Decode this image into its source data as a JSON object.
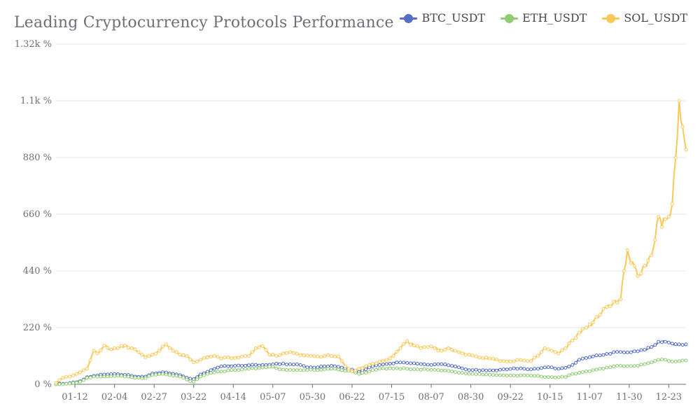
{
  "chart_data": {
    "type": "line",
    "title": "Leading Cryptocurrency Protocols Performance",
    "xlabel": "",
    "ylabel": "",
    "ylim": [
      0,
      1320
    ],
    "y_ticks": [
      "0 %",
      "220 %",
      "440 %",
      "660 %",
      "880 %",
      "1.1k %",
      "1.32k %"
    ],
    "y_tick_values": [
      0,
      220,
      440,
      660,
      880,
      1100,
      1320
    ],
    "x_tick_labels": [
      "01-12",
      "02-04",
      "02-27",
      "03-22",
      "04-14",
      "05-07",
      "05-30",
      "06-22",
      "07-15",
      "08-07",
      "08-30",
      "09-22",
      "10-15",
      "11-07",
      "11-30",
      "12-23"
    ],
    "x_tick_indices": [
      11,
      34,
      57,
      80,
      103,
      126,
      149,
      172,
      195,
      218,
      241,
      264,
      287,
      310,
      333,
      356
    ],
    "x_count": 366,
    "grid": true,
    "legend_position": "top-right",
    "series": [
      {
        "name": "BTC_USDT",
        "color": "#5470c6",
        "points": [
          [
            0,
            0
          ],
          [
            8,
            5
          ],
          [
            14,
            12
          ],
          [
            18,
            28
          ],
          [
            22,
            33
          ],
          [
            28,
            38
          ],
          [
            34,
            40
          ],
          [
            40,
            37
          ],
          [
            46,
            30
          ],
          [
            52,
            30
          ],
          [
            56,
            42
          ],
          [
            62,
            47
          ],
          [
            66,
            42
          ],
          [
            72,
            36
          ],
          [
            78,
            22
          ],
          [
            80,
            20
          ],
          [
            84,
            38
          ],
          [
            90,
            55
          ],
          [
            96,
            70
          ],
          [
            104,
            72
          ],
          [
            112,
            74
          ],
          [
            120,
            75
          ],
          [
            128,
            80
          ],
          [
            136,
            78
          ],
          [
            142,
            75
          ],
          [
            146,
            66
          ],
          [
            150,
            65
          ],
          [
            156,
            70
          ],
          [
            160,
            72
          ],
          [
            164,
            68
          ],
          [
            168,
            62
          ],
          [
            172,
            57
          ],
          [
            176,
            48
          ],
          [
            180,
            58
          ],
          [
            184,
            70
          ],
          [
            188,
            75
          ],
          [
            194,
            80
          ],
          [
            198,
            85
          ],
          [
            204,
            83
          ],
          [
            210,
            80
          ],
          [
            216,
            76
          ],
          [
            222,
            78
          ],
          [
            228,
            74
          ],
          [
            234,
            66
          ],
          [
            238,
            58
          ],
          [
            242,
            55
          ],
          [
            248,
            55
          ],
          [
            254,
            54
          ],
          [
            260,
            58
          ],
          [
            266,
            62
          ],
          [
            272,
            60
          ],
          [
            276,
            58
          ],
          [
            282,
            63
          ],
          [
            288,
            66
          ],
          [
            292,
            60
          ],
          [
            296,
            64
          ],
          [
            300,
            75
          ],
          [
            304,
            95
          ],
          [
            308,
            102
          ],
          [
            312,
            108
          ],
          [
            316,
            112
          ],
          [
            320,
            118
          ],
          [
            326,
            126
          ],
          [
            332,
            124
          ],
          [
            338,
            128
          ],
          [
            342,
            134
          ],
          [
            346,
            145
          ],
          [
            350,
            165
          ],
          [
            354,
            165
          ],
          [
            358,
            158
          ],
          [
            362,
            155
          ],
          [
            366,
            155
          ]
        ]
      },
      {
        "name": "ETH_USDT",
        "color": "#91cc75",
        "points": [
          [
            0,
            0
          ],
          [
            8,
            3
          ],
          [
            14,
            10
          ],
          [
            18,
            25
          ],
          [
            22,
            30
          ],
          [
            28,
            30
          ],
          [
            34,
            32
          ],
          [
            40,
            30
          ],
          [
            46,
            25
          ],
          [
            52,
            24
          ],
          [
            56,
            36
          ],
          [
            62,
            40
          ],
          [
            66,
            36
          ],
          [
            72,
            30
          ],
          [
            78,
            12
          ],
          [
            80,
            10
          ],
          [
            84,
            30
          ],
          [
            90,
            44
          ],
          [
            96,
            50
          ],
          [
            104,
            55
          ],
          [
            112,
            60
          ],
          [
            120,
            65
          ],
          [
            126,
            68
          ],
          [
            130,
            58
          ],
          [
            136,
            56
          ],
          [
            142,
            55
          ],
          [
            146,
            55
          ],
          [
            150,
            55
          ],
          [
            156,
            58
          ],
          [
            160,
            60
          ],
          [
            164,
            57
          ],
          [
            168,
            52
          ],
          [
            172,
            50
          ],
          [
            176,
            40
          ],
          [
            180,
            45
          ],
          [
            184,
            55
          ],
          [
            188,
            60
          ],
          [
            194,
            62
          ],
          [
            198,
            62
          ],
          [
            204,
            60
          ],
          [
            210,
            58
          ],
          [
            216,
            57
          ],
          [
            222,
            55
          ],
          [
            228,
            52
          ],
          [
            234,
            45
          ],
          [
            238,
            42
          ],
          [
            242,
            40
          ],
          [
            248,
            38
          ],
          [
            254,
            36
          ],
          [
            260,
            35
          ],
          [
            266,
            34
          ],
          [
            272,
            35
          ],
          [
            276,
            34
          ],
          [
            282,
            30
          ],
          [
            288,
            28
          ],
          [
            292,
            27
          ],
          [
            296,
            28
          ],
          [
            300,
            40
          ],
          [
            304,
            45
          ],
          [
            308,
            50
          ],
          [
            312,
            55
          ],
          [
            316,
            60
          ],
          [
            320,
            65
          ],
          [
            326,
            72
          ],
          [
            332,
            70
          ],
          [
            338,
            72
          ],
          [
            342,
            78
          ],
          [
            346,
            85
          ],
          [
            350,
            95
          ],
          [
            354,
            95
          ],
          [
            358,
            88
          ],
          [
            362,
            90
          ],
          [
            366,
            92
          ]
        ]
      },
      {
        "name": "SOL_USDT",
        "color": "#fac858",
        "points": [
          [
            0,
            5
          ],
          [
            4,
            25
          ],
          [
            8,
            30
          ],
          [
            12,
            40
          ],
          [
            16,
            55
          ],
          [
            18,
            60
          ],
          [
            22,
            130
          ],
          [
            24,
            120
          ],
          [
            28,
            150
          ],
          [
            32,
            135
          ],
          [
            36,
            140
          ],
          [
            40,
            150
          ],
          [
            44,
            140
          ],
          [
            48,
            125
          ],
          [
            52,
            105
          ],
          [
            56,
            115
          ],
          [
            60,
            130
          ],
          [
            64,
            155
          ],
          [
            68,
            130
          ],
          [
            72,
            115
          ],
          [
            76,
            110
          ],
          [
            80,
            85
          ],
          [
            84,
            95
          ],
          [
            88,
            105
          ],
          [
            92,
            110
          ],
          [
            96,
            100
          ],
          [
            100,
            105
          ],
          [
            104,
            102
          ],
          [
            108,
            108
          ],
          [
            112,
            110
          ],
          [
            116,
            140
          ],
          [
            120,
            148
          ],
          [
            124,
            115
          ],
          [
            128,
            110
          ],
          [
            132,
            120
          ],
          [
            136,
            125
          ],
          [
            140,
            118
          ],
          [
            144,
            112
          ],
          [
            148,
            110
          ],
          [
            152,
            108
          ],
          [
            156,
            110
          ],
          [
            160,
            110
          ],
          [
            164,
            108
          ],
          [
            168,
            70
          ],
          [
            172,
            50
          ],
          [
            176,
            60
          ],
          [
            180,
            70
          ],
          [
            184,
            80
          ],
          [
            188,
            88
          ],
          [
            192,
            95
          ],
          [
            196,
            110
          ],
          [
            200,
            140
          ],
          [
            204,
            168
          ],
          [
            208,
            150
          ],
          [
            212,
            140
          ],
          [
            216,
            145
          ],
          [
            220,
            140
          ],
          [
            224,
            130
          ],
          [
            228,
            140
          ],
          [
            232,
            130
          ],
          [
            236,
            120
          ],
          [
            240,
            115
          ],
          [
            244,
            108
          ],
          [
            248,
            102
          ],
          [
            252,
            100
          ],
          [
            256,
            96
          ],
          [
            260,
            90
          ],
          [
            264,
            88
          ],
          [
            268,
            95
          ],
          [
            272,
            92
          ],
          [
            276,
            90
          ],
          [
            280,
            110
          ],
          [
            284,
            140
          ],
          [
            288,
            130
          ],
          [
            292,
            120
          ],
          [
            296,
            140
          ],
          [
            300,
            170
          ],
          [
            304,
            200
          ],
          [
            308,
            220
          ],
          [
            312,
            240
          ],
          [
            316,
            270
          ],
          [
            320,
            300
          ],
          [
            324,
            320
          ],
          [
            328,
            330
          ],
          [
            330,
            440
          ],
          [
            332,
            520
          ],
          [
            334,
            470
          ],
          [
            336,
            460
          ],
          [
            338,
            420
          ],
          [
            340,
            430
          ],
          [
            342,
            460
          ],
          [
            344,
            480
          ],
          [
            346,
            500
          ],
          [
            348,
            560
          ],
          [
            350,
            650
          ],
          [
            352,
            610
          ],
          [
            354,
            640
          ],
          [
            356,
            650
          ],
          [
            358,
            700
          ],
          [
            360,
            880
          ],
          [
            362,
            1100
          ],
          [
            364,
            1000
          ],
          [
            366,
            910
          ]
        ]
      }
    ]
  }
}
